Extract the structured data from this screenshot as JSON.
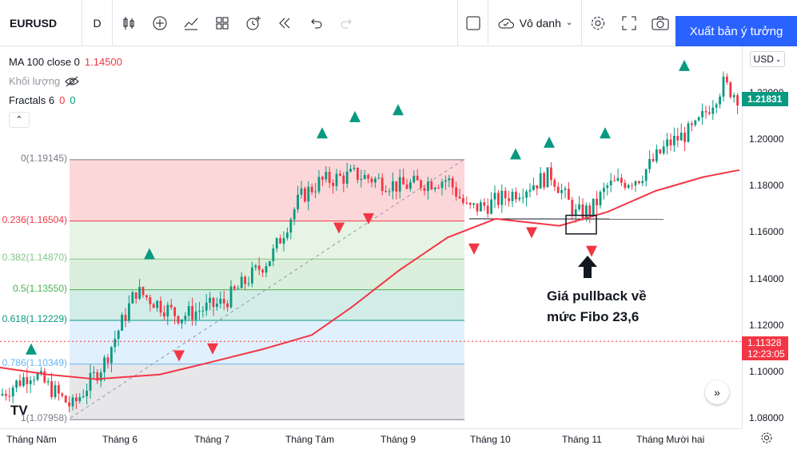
{
  "toolbar": {
    "symbol": "EURUSD",
    "interval": "D",
    "style_label": "Vô danh",
    "publish_label": "Xuất bản ý tưởng"
  },
  "legend": {
    "ma_label": "MA 100 close 0",
    "ma_value": "1.14500",
    "volume_label": "Khối lượng",
    "fractals_label": "Fractals 6",
    "fractals_up": "0",
    "fractals_down": "0"
  },
  "price_axis": {
    "currency": "USD",
    "ticks": [
      "1.22000",
      "1.20000",
      "1.18000",
      "1.16000",
      "1.14000",
      "1.12000",
      "1.10000",
      "1.08000"
    ],
    "last_price": "1.21831",
    "cross_price": "1.11328",
    "countdown": "12:23:05"
  },
  "time_axis": [
    "Tháng Năm",
    "Tháng 6",
    "Tháng 7",
    "Tháng Tám",
    "Tháng 9",
    "Tháng 10",
    "Tháng 11",
    "Tháng Mười hai"
  ],
  "fib_levels": [
    {
      "label": "0(1.19145)",
      "price": 1.19145,
      "color": "#787b86"
    },
    {
      "label": "0.236(1.16504)",
      "price": 1.16504,
      "color": "#f23645"
    },
    {
      "label": "0.382(1.14870)",
      "price": 1.1487,
      "color": "#81c784"
    },
    {
      "label": "0.5(1.13550)",
      "price": 1.1355,
      "color": "#4caf50"
    },
    {
      "label": "0.618(1.12229)",
      "price": 1.12229,
      "color": "#089981"
    },
    {
      "label": "0.786(1.10349)",
      "price": 1.10349,
      "color": "#64b5f6"
    },
    {
      "label": "1(1.07958)",
      "price": 1.07958,
      "color": "#787b86"
    }
  ],
  "annotation": {
    "line1": "Giá pullback về",
    "line2": "mức Fibo 23,6"
  },
  "colors": {
    "up": "#089981",
    "down": "#f23645",
    "ma": "#f23645",
    "accent": "#2962ff"
  },
  "icons": [
    "bar-style-icon",
    "add-indicator-icon",
    "chart-type-icon",
    "layout-icon",
    "alert-icon",
    "replay-icon",
    "undo-icon",
    "redo-icon",
    "fullscreen-icon",
    "camera-icon",
    "settings-icon",
    "cloud-icon"
  ]
}
